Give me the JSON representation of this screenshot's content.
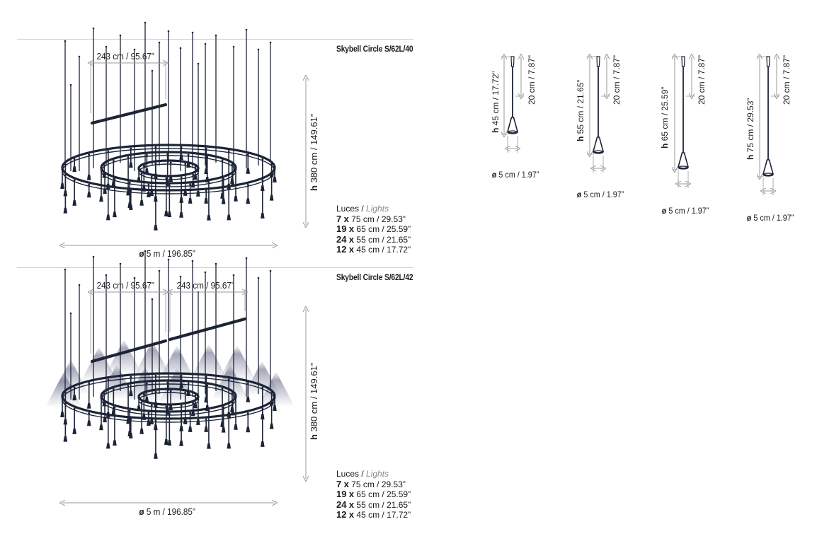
{
  "diagrams": [
    {
      "title": "Skybell Circle S/62L/40",
      "bar_widths": [
        "243 cm / 95.67”"
      ],
      "height": "380 cm / 149.61”",
      "diameter": "5 m / 196.85”",
      "lights_label": "Luces",
      "lights_label_en": "Lights",
      "lights": [
        {
          "qty": "7",
          "spec": "75 cm / 29.53”"
        },
        {
          "qty": "19",
          "spec": "65 cm / 25.59”"
        },
        {
          "qty": "24",
          "spec": "55 cm / 21.65”"
        },
        {
          "qty": "12",
          "spec": "45 cm / 17.72”"
        }
      ]
    },
    {
      "title": "Skybell Circle S/62L/42",
      "bar_widths": [
        "243 cm / 95.67”",
        "243 cm / 95.67”"
      ],
      "height": "380 cm / 149.61”",
      "diameter": "5 m / 196.85”",
      "lights_label": "Luces",
      "lights_label_en": "Lights",
      "lights": [
        {
          "qty": "7",
          "spec": "75 cm / 29.53”"
        },
        {
          "qty": "19",
          "spec": "65 cm / 25.59”"
        },
        {
          "qty": "24",
          "spec": "55 cm / 21.65”"
        },
        {
          "qty": "12",
          "spec": "45 cm / 17.72”"
        }
      ]
    }
  ],
  "pendants": [
    {
      "height": "45 cm / 17.72”",
      "cable": "20 cm / 7.87”",
      "diameter": "5 cm / 1.97”"
    },
    {
      "height": "55 cm / 21.65”",
      "cable": "20 cm / 7.87”",
      "diameter": "5 cm / 1.97”"
    },
    {
      "height": "65 cm / 25.59”",
      "cable": "20 cm / 7.87”",
      "diameter": "5 cm / 1.97”"
    },
    {
      "height": "75 cm / 29.53”",
      "cable": "20 cm / 7.87”",
      "diameter": "5 cm / 1.97”"
    }
  ],
  "symbols": {
    "height": "h",
    "diameter": "ø",
    "times": "x"
  },
  "colors": {
    "fixture": "#1c2436",
    "dimension": "#9a9a9a",
    "glow": "#6b6f8a"
  }
}
